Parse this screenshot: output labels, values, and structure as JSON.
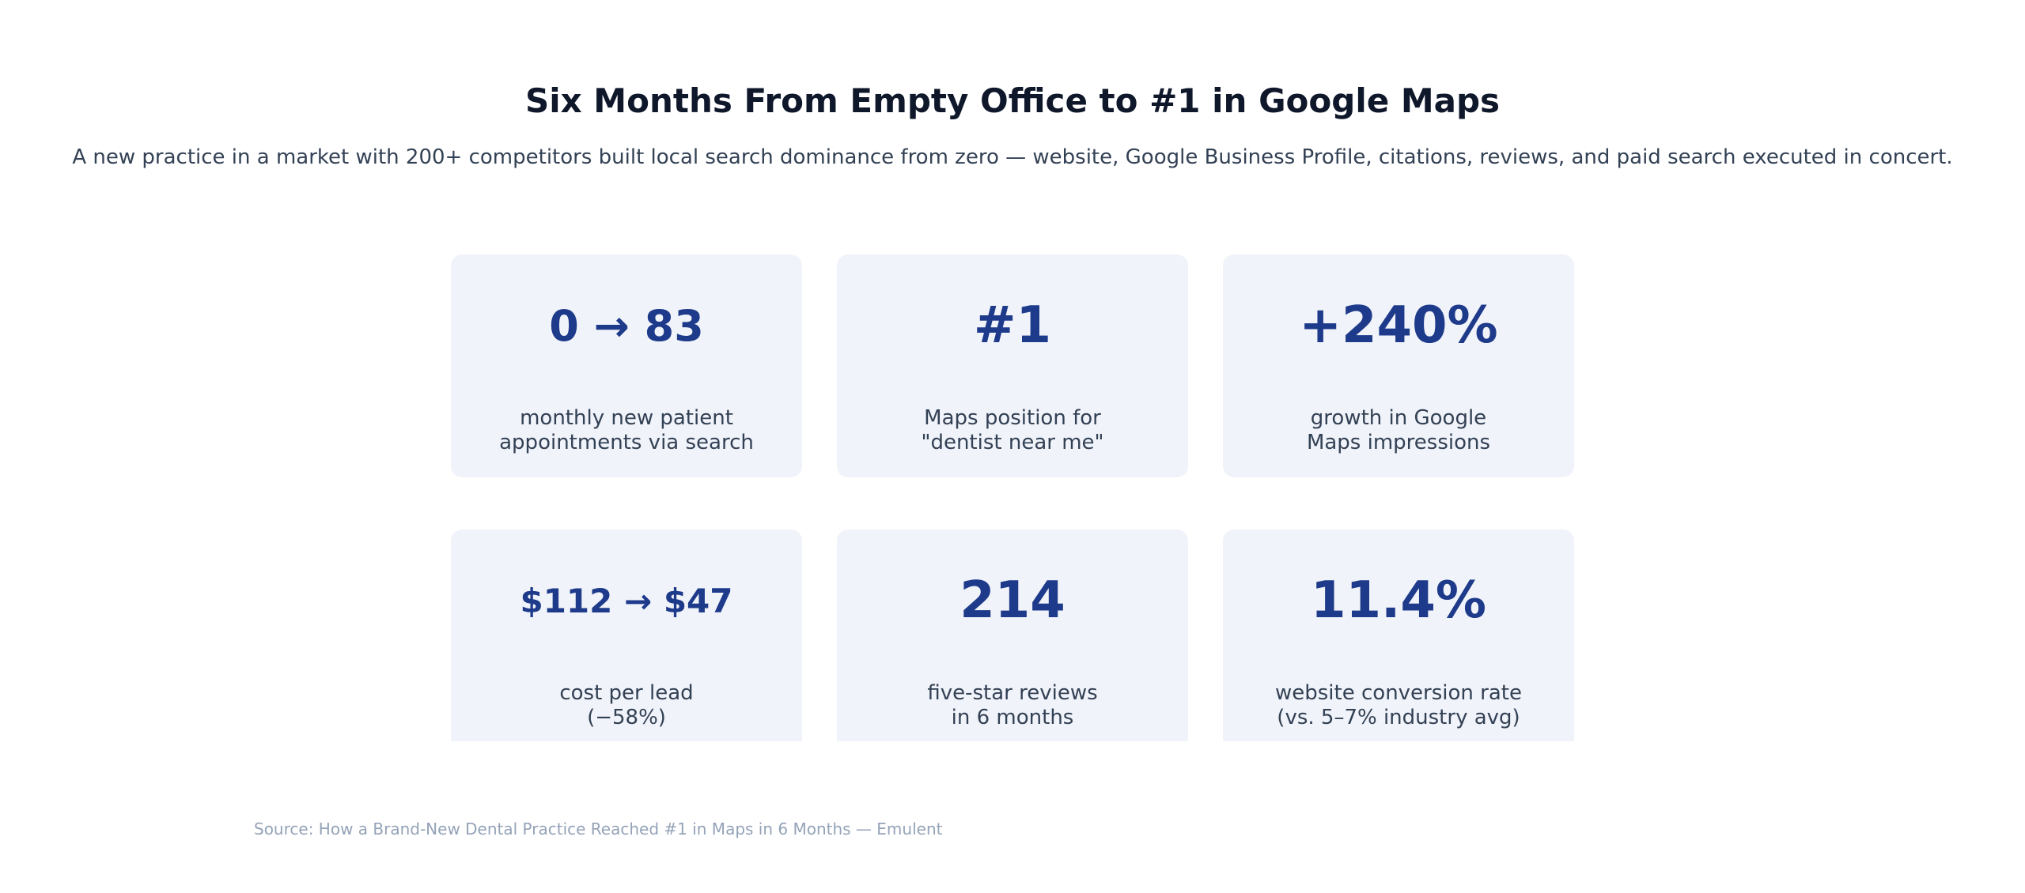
{
  "header": {
    "title": "Six Months From Empty Office to #1 in Google Maps",
    "subtitle": "A new practice in a market with 200+ competitors built local search dominance from zero — website, Google Business Profile, citations, reviews, and paid search executed in concert."
  },
  "stats": [
    {
      "value": "0 → 83",
      "label_line1": "monthly new patient",
      "label_line2": "appointments via search"
    },
    {
      "value": "#1",
      "label_line1": "Maps position for",
      "label_line2": "\"dentist near me\""
    },
    {
      "value": "+240%",
      "label_line1": "growth in Google",
      "label_line2": "Maps impressions"
    },
    {
      "value": "$112 → $47",
      "label_line1": "cost per lead",
      "label_line2": "(−58%)"
    },
    {
      "value": "214",
      "label_line1": "five-star reviews",
      "label_line2": "in 6 months"
    },
    {
      "value": "11.4%",
      "label_line1": "website conversion rate",
      "label_line2": "(vs. 5–7% industry avg)"
    }
  ],
  "footer": {
    "source": "Source: How a Brand-New Dental Practice Reached #1 in Maps in 6 Months — Emulent"
  },
  "colors": {
    "title": "#0f172a",
    "accent": "#1e3a8a",
    "card_bg": "#f0f3f9",
    "body_text": "#334155",
    "muted": "#94a3b8"
  }
}
